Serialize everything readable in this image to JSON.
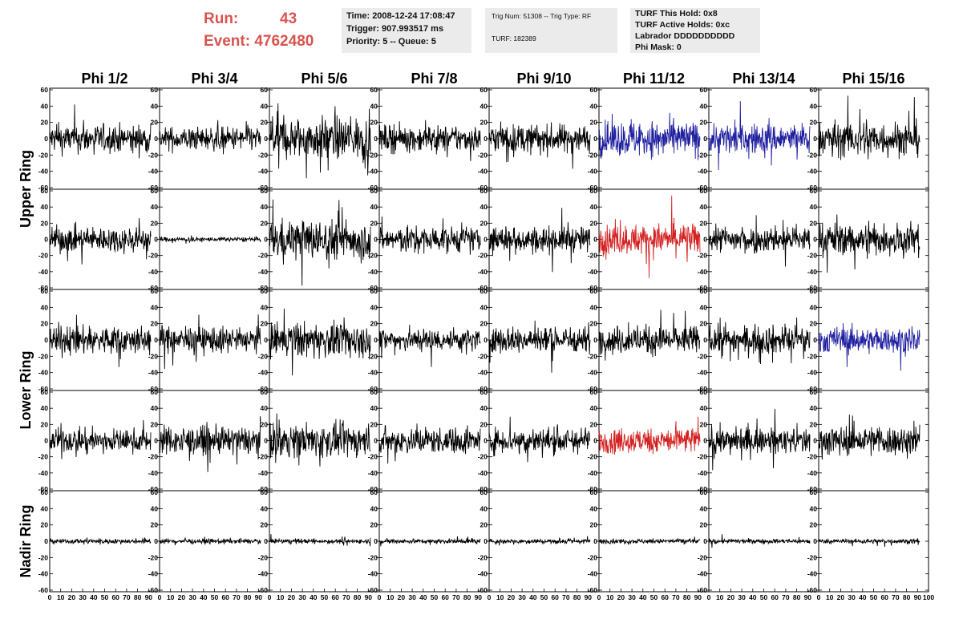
{
  "header": {
    "run_label": "Run:",
    "run_value": "43",
    "event_label": "Event:",
    "event_value": "4762480",
    "time": "Time: 2008-12-24 17:08:47",
    "trigger": "Trigger: 907.993517 ms",
    "priority": "Priority: 5 -- Queue: 5",
    "trig_num": "Trig Num: 51308 -- Trig Type: RF",
    "turf": "TURF: 182389",
    "turf_this_hold": "TURF This Hold: 0x8",
    "turf_active_holds": "TURF Active Holds: 0xc",
    "labrador": "Labrador DDDDDDDDDD",
    "phi_mask": "Phi Mask: 0"
  },
  "colors": {
    "run_text": "#d9534f",
    "trace_default": "#000000",
    "trace_blue": "#1f1fa0",
    "trace_red": "#d42020",
    "box_bg": "#ebebeb"
  },
  "chart_data": {
    "type": "line",
    "columns": [
      "Phi 1/2",
      "Phi 3/4",
      "Phi 5/6",
      "Phi 7/8",
      "Phi 9/10",
      "Phi 11/12",
      "Phi 13/14",
      "Phi 15/16"
    ],
    "ring_labels": [
      "Upper Ring",
      "Lower Ring",
      "Nadir Ring"
    ],
    "xlim": [
      0,
      100
    ],
    "ylim": [
      -60,
      60
    ],
    "x_ticks": [
      "0",
      "10",
      "20",
      "30",
      "40",
      "50",
      "60",
      "70",
      "80",
      "90",
      "100"
    ],
    "y_ticks": [
      "-60",
      "-40",
      "-20",
      "0",
      "20",
      "40",
      "60"
    ],
    "row_amplitudes": [
      [
        12,
        10,
        18,
        11,
        12,
        15,
        13,
        15
      ],
      [
        11,
        2,
        17,
        11,
        11,
        13,
        11,
        14
      ],
      [
        12,
        11,
        15,
        10,
        11,
        12,
        12,
        11
      ],
      [
        10,
        12,
        14,
        11,
        11,
        11,
        11,
        13
      ],
      [
        2,
        2,
        2,
        2,
        2,
        2,
        2,
        2
      ]
    ],
    "row_colors": [
      [
        "k",
        "k",
        "k",
        "k",
        "k",
        "b",
        "b",
        "k"
      ],
      [
        "k",
        "k",
        "k",
        "k",
        "k",
        "r",
        "k",
        "k"
      ],
      [
        "k",
        "k",
        "k",
        "k",
        "k",
        "k",
        "k",
        "b"
      ],
      [
        "k",
        "k",
        "k",
        "k",
        "k",
        "r",
        "k",
        "k"
      ],
      [
        "k",
        "k",
        "k",
        "k",
        "k",
        "k",
        "k",
        "k"
      ]
    ]
  }
}
